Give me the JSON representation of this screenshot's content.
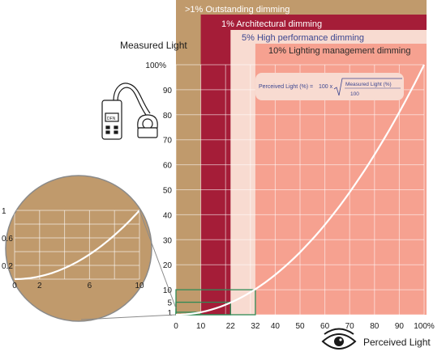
{
  "chart_data": {
    "type": "line",
    "ylabel": "Measured Light",
    "xlabel": "Perceived Light",
    "xlim": [
      0,
      100
    ],
    "ylim": [
      0,
      100
    ],
    "x_ticks": [
      "0",
      "10",
      "22",
      "32",
      "40",
      "50",
      "60",
      "70",
      "80",
      "90",
      "100%"
    ],
    "x_tick_values": [
      0,
      10,
      22,
      32,
      40,
      50,
      60,
      70,
      80,
      90,
      100
    ],
    "y_ticks": [
      "1",
      "5",
      "10",
      "20",
      "30",
      "40",
      "50",
      "60",
      "70",
      "80",
      "90",
      "100%"
    ],
    "y_tick_values": [
      1,
      5,
      10,
      20,
      30,
      40,
      50,
      60,
      70,
      80,
      90,
      100
    ],
    "grid": true,
    "series": [
      {
        "x": [
          0,
          10,
          20,
          22,
          30,
          32,
          40,
          50,
          60,
          70,
          80,
          90,
          100
        ],
        "y": [
          0,
          1,
          4,
          5,
          9,
          10,
          16,
          25,
          36,
          49,
          64,
          81,
          100
        ]
      }
    ],
    "bands": [
      {
        "label": ">1% Outstanding dimming",
        "x_start": 0,
        "color": "#c09a6c"
      },
      {
        "label": "1% Architectural dimming",
        "x_start": 10,
        "color": "#a51d38"
      },
      {
        "label": "5% High performance dimming",
        "x_start": 22,
        "color": "#f8dbd1"
      },
      {
        "label": "10% Lighting management dimming",
        "x_start": 32,
        "color": "#f6a190"
      }
    ],
    "formula": {
      "lhs": "Perceived Light (%) =",
      "coef": "100 x",
      "numerator": "Measured Light (%)",
      "denominator": "100"
    },
    "inset": {
      "x_ticks": [
        "0",
        "2",
        "6",
        "10"
      ],
      "x_tick_values": [
        0,
        2,
        6,
        10
      ],
      "y_ticks": [
        "1",
        "0.6",
        "0.2"
      ],
      "y_tick_values": [
        1,
        0.6,
        0.2
      ],
      "xlim": [
        0,
        10
      ],
      "ylim": [
        0,
        1
      ]
    },
    "icons": [
      "light-meter-icon",
      "eye-icon"
    ]
  }
}
